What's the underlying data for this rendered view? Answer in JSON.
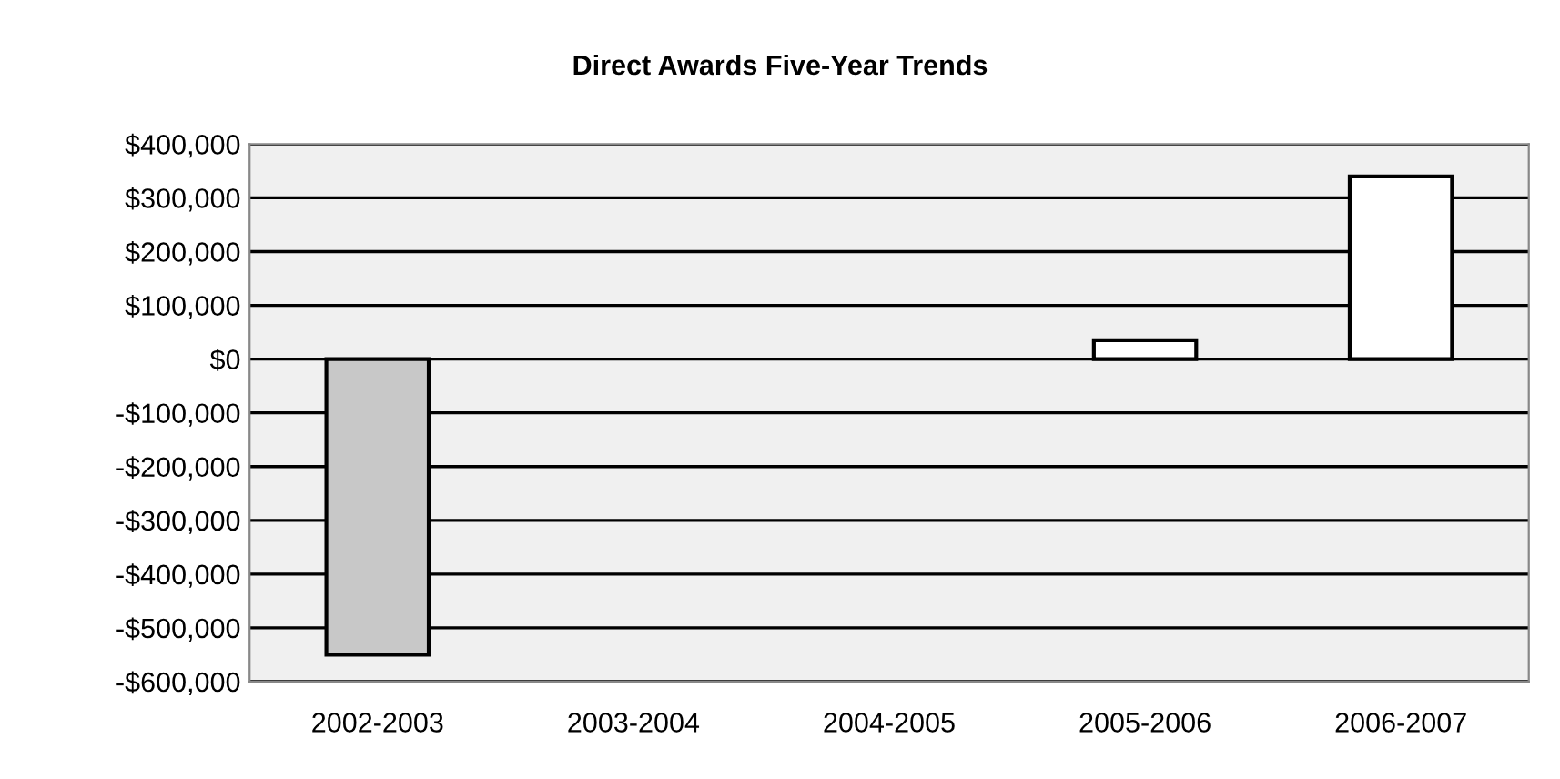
{
  "chart_data": {
    "type": "bar",
    "title": "Direct Awards Five-Year Trends",
    "categories": [
      "2002-2003",
      "2003-2004",
      "2004-2005",
      "2005-2006",
      "2006-2007"
    ],
    "values": [
      -550000,
      null,
      null,
      35000,
      340000
    ],
    "colors": [
      "#c8c8c8",
      "#ffffff",
      "#ffffff",
      "#ffffff",
      "#ffffff"
    ],
    "ylim": [
      -600000,
      400000
    ],
    "yticks": [
      {
        "value": -600000,
        "label": "-$600,000"
      },
      {
        "value": -500000,
        "label": "-$500,000"
      },
      {
        "value": -400000,
        "label": "-$400,000"
      },
      {
        "value": -300000,
        "label": "-$300,000"
      },
      {
        "value": -200000,
        "label": "-$200,000"
      },
      {
        "value": -100000,
        "label": "-$100,000"
      },
      {
        "value": 0,
        "label": "$0"
      },
      {
        "value": 100000,
        "label": "$100,000"
      },
      {
        "value": 200000,
        "label": "$200,000"
      },
      {
        "value": 300000,
        "label": "$300,000"
      },
      {
        "value": 400000,
        "label": "$400,000"
      }
    ],
    "grid": "y"
  }
}
